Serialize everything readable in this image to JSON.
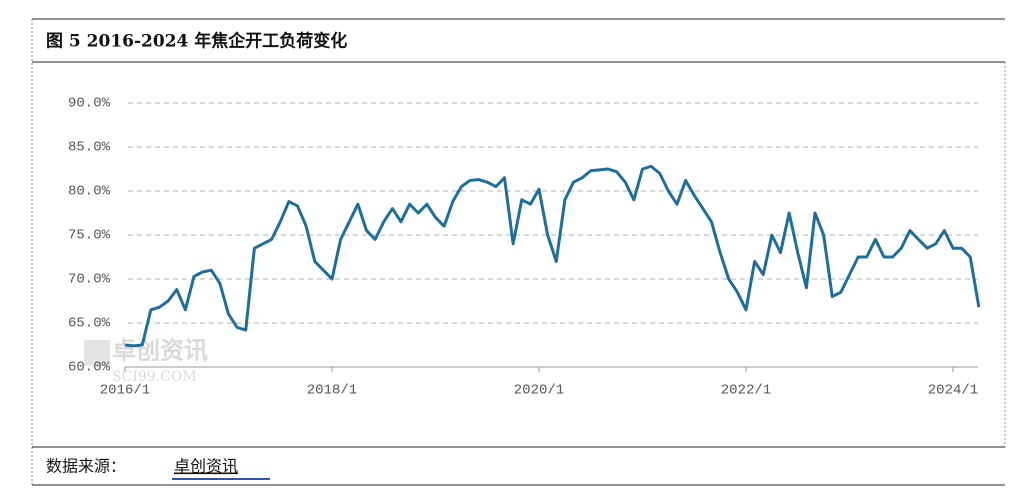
{
  "chart_data": {
    "type": "line",
    "title": "图 5 2016-2024 年焦企开工负荷变化",
    "source_label": "数据来源：",
    "source": "卓创资讯",
    "watermark": "卓创资讯",
    "watermark_sub": "SCI99.COM",
    "x": [
      "2016/1",
      "2016/2",
      "2016/3",
      "2016/4",
      "2016/5",
      "2016/6",
      "2016/7",
      "2016/8",
      "2016/9",
      "2016/10",
      "2016/11",
      "2016/12",
      "2017/1",
      "2017/2",
      "2017/3",
      "2017/4",
      "2017/5",
      "2017/6",
      "2017/7",
      "2017/8",
      "2017/9",
      "2017/10",
      "2017/11",
      "2017/12",
      "2018/1",
      "2018/2",
      "2018/3",
      "2018/4",
      "2018/5",
      "2018/6",
      "2018/7",
      "2018/8",
      "2018/9",
      "2018/10",
      "2018/11",
      "2018/12",
      "2019/1",
      "2019/2",
      "2019/3",
      "2019/4",
      "2019/5",
      "2019/6",
      "2019/7",
      "2019/8",
      "2019/9",
      "2019/10",
      "2019/11",
      "2019/12",
      "2020/1",
      "2020/2",
      "2020/3",
      "2020/4",
      "2020/5",
      "2020/6",
      "2020/7",
      "2020/8",
      "2020/9",
      "2020/10",
      "2020/11",
      "2020/12",
      "2021/1",
      "2021/2",
      "2021/3",
      "2021/4",
      "2021/5",
      "2021/6",
      "2021/7",
      "2021/8",
      "2021/9",
      "2021/10",
      "2021/11",
      "2021/12",
      "2022/1",
      "2022/2",
      "2022/3",
      "2022/4",
      "2022/5",
      "2022/6",
      "2022/7",
      "2022/8",
      "2022/9",
      "2022/10",
      "2022/11",
      "2022/12",
      "2023/1",
      "2023/2",
      "2023/3",
      "2023/4",
      "2023/5",
      "2023/6",
      "2023/7",
      "2023/8",
      "2023/9",
      "2023/10",
      "2023/11",
      "2023/12",
      "2024/1",
      "2024/2",
      "2024/3",
      "2024/4"
    ],
    "series": [
      {
        "name": "焦企开工负荷",
        "color": "#1f6e9a",
        "values": [
          62.5,
          62.4,
          62.5,
          66.5,
          66.8,
          67.5,
          68.8,
          66.5,
          70.3,
          70.8,
          71,
          69.5,
          66,
          64.5,
          64.2,
          73.5,
          74,
          74.5,
          76.5,
          78.8,
          78.3,
          76,
          72,
          71,
          70,
          74.5,
          76.5,
          78.5,
          75.5,
          74.5,
          76.5,
          78,
          76.5,
          78.5,
          77.5,
          78.5,
          77,
          76,
          78.8,
          80.5,
          81.2,
          81.3,
          81,
          80.5,
          81.5,
          74,
          79,
          78.5,
          80.2,
          75,
          72,
          79,
          81,
          81.5,
          82.3,
          82.4,
          82.5,
          82.2,
          81,
          79,
          82.5,
          82.8,
          82,
          80,
          78.5,
          81.2,
          79.5,
          78,
          76.5,
          73,
          70,
          68.5,
          66.5,
          72,
          70.5,
          75,
          73,
          77.5,
          73,
          69,
          77.5,
          75,
          68,
          68.5,
          70.5,
          72.5,
          72.5,
          74.5,
          72.5,
          72.5,
          73.5,
          75.5,
          74.5,
          73.5,
          74,
          75.5,
          73.5,
          73.5,
          72.5,
          66.8
        ]
      }
    ],
    "ylim": [
      60,
      90
    ],
    "yticks": [
      {
        "value": 60,
        "label": "60.0%"
      },
      {
        "value": 65,
        "label": "65.0%"
      },
      {
        "value": 70,
        "label": "70.0%"
      },
      {
        "value": 75,
        "label": "75.0%"
      },
      {
        "value": 80,
        "label": "80.0%"
      },
      {
        "value": 85,
        "label": "85.0%"
      },
      {
        "value": 90,
        "label": "90.0%"
      }
    ],
    "xticks": [
      "2016/1",
      "2018/1",
      "2020/1",
      "2022/1",
      "2024/1"
    ],
    "grid": true
  }
}
